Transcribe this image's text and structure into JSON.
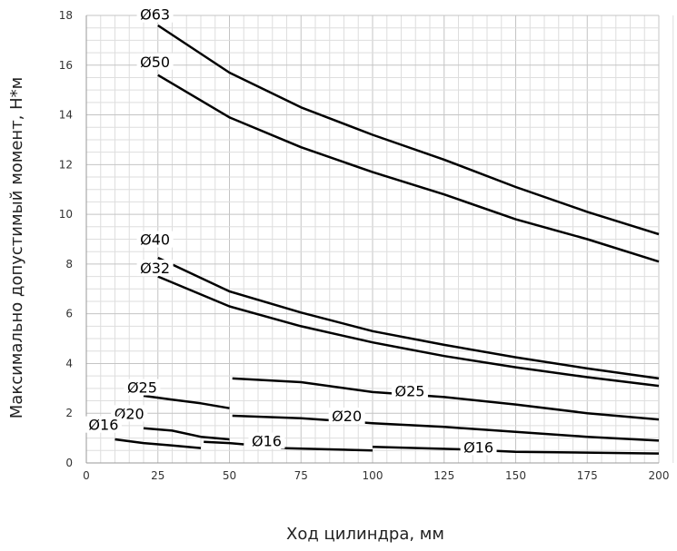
{
  "chart_data": {
    "type": "line",
    "xlabel": "Ход цилиндра, мм",
    "ylabel": "Максимально допустимый момент, Н*м",
    "xlim": [
      0,
      200
    ],
    "ylim": [
      0,
      18
    ],
    "x_ticks": [
      0,
      25,
      50,
      75,
      100,
      125,
      150,
      175,
      200
    ],
    "y_ticks": [
      0,
      2,
      4,
      6,
      8,
      10,
      12,
      14,
      16,
      18
    ],
    "grid": true,
    "line_color": "#000000",
    "series": [
      {
        "name": "Ø63",
        "points": [
          [
            25,
            17.6
          ],
          [
            50,
            15.7
          ],
          [
            75,
            14.3
          ],
          [
            100,
            13.2
          ],
          [
            125,
            12.2
          ],
          [
            150,
            11.1
          ],
          [
            175,
            10.1
          ],
          [
            200,
            9.2
          ]
        ]
      },
      {
        "name": "Ø50",
        "points": [
          [
            25,
            15.6
          ],
          [
            50,
            13.9
          ],
          [
            75,
            12.7
          ],
          [
            100,
            11.7
          ],
          [
            125,
            10.8
          ],
          [
            150,
            9.8
          ],
          [
            175,
            9.0
          ],
          [
            200,
            8.1
          ]
        ]
      },
      {
        "name": "Ø40",
        "points": [
          [
            25,
            8.25
          ],
          [
            50,
            6.9
          ],
          [
            75,
            6.05
          ],
          [
            100,
            5.3
          ],
          [
            125,
            4.75
          ],
          [
            150,
            4.25
          ],
          [
            175,
            3.8
          ],
          [
            200,
            3.4
          ]
        ]
      },
      {
        "name": "Ø32",
        "points": [
          [
            25,
            7.5
          ],
          [
            50,
            6.3
          ],
          [
            75,
            5.5
          ],
          [
            100,
            4.85
          ],
          [
            125,
            4.3
          ],
          [
            150,
            3.85
          ],
          [
            175,
            3.45
          ],
          [
            200,
            3.1
          ]
        ]
      },
      {
        "name": "Ø25",
        "points": [
          [
            20,
            2.7
          ],
          [
            30,
            2.55
          ],
          [
            40,
            2.4
          ],
          [
            50,
            2.2
          ]
        ]
      },
      {
        "name": "Ø25",
        "points": [
          [
            51,
            3.4
          ],
          [
            75,
            3.25
          ],
          [
            100,
            2.85
          ],
          [
            125,
            2.65
          ],
          [
            150,
            2.35
          ],
          [
            175,
            2.0
          ],
          [
            200,
            1.75
          ]
        ]
      },
      {
        "name": "Ø20",
        "points": [
          [
            20,
            1.4
          ],
          [
            30,
            1.3
          ],
          [
            40,
            1.05
          ],
          [
            50,
            0.95
          ]
        ]
      },
      {
        "name": "Ø20",
        "points": [
          [
            51,
            1.9
          ],
          [
            75,
            1.8
          ],
          [
            100,
            1.6
          ],
          [
            125,
            1.45
          ],
          [
            150,
            1.25
          ],
          [
            175,
            1.05
          ],
          [
            200,
            0.9
          ]
        ]
      },
      {
        "name": "Ø16",
        "points": [
          [
            10,
            0.95
          ],
          [
            20,
            0.8
          ],
          [
            30,
            0.7
          ],
          [
            40,
            0.6
          ]
        ]
      },
      {
        "name": "Ø16",
        "points": [
          [
            41,
            0.85
          ],
          [
            50,
            0.8
          ],
          [
            55,
            0.75
          ]
        ]
      },
      {
        "name": "Ø16",
        "points": [
          [
            68,
            0.6
          ],
          [
            100,
            0.5
          ]
        ]
      },
      {
        "name": "Ø16",
        "points": [
          [
            100,
            0.65
          ],
          [
            130,
            0.55
          ],
          [
            150,
            0.45
          ],
          [
            200,
            0.38
          ]
        ]
      }
    ],
    "annotations": [
      {
        "text": "Ø63",
        "x": 24,
        "y": 17.9
      },
      {
        "text": "Ø50",
        "x": 24,
        "y": 16.0
      },
      {
        "text": "Ø40",
        "x": 24,
        "y": 8.85
      },
      {
        "text": "Ø32",
        "x": 24,
        "y": 7.7
      },
      {
        "text": "Ø25",
        "x": 19.5,
        "y": 2.9
      },
      {
        "text": "Ø25",
        "x": 113,
        "y": 2.75
      },
      {
        "text": "Ø20",
        "x": 15,
        "y": 1.85
      },
      {
        "text": "Ø20",
        "x": 91,
        "y": 1.75
      },
      {
        "text": "Ø16",
        "x": 6,
        "y": 1.4
      },
      {
        "text": "Ø16",
        "x": 63,
        "y": 0.75
      },
      {
        "text": "Ø16",
        "x": 137,
        "y": 0.5
      }
    ]
  }
}
